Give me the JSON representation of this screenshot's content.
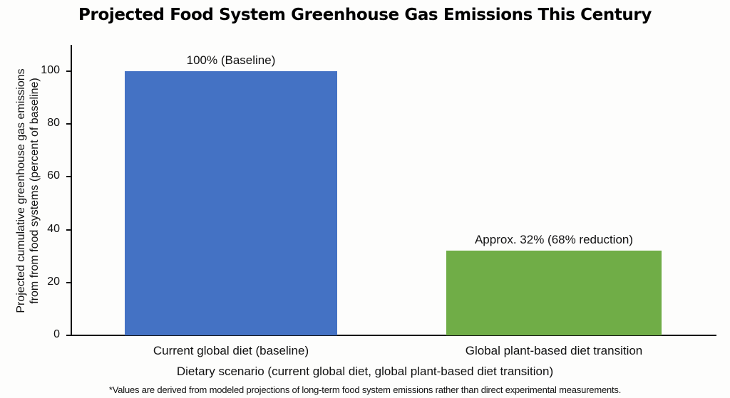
{
  "chart_data": {
    "type": "bar",
    "title": "Projected Food System Greenhouse Gas Emissions This Century",
    "xlabel": "Dietary scenario (current global diet, global plant-based diet transition)",
    "ylabel": "Projected cumulative greenhouse gas emissions from from food systems (percent of baseline)",
    "categories": [
      "Current global diet (baseline)",
      "Global plant-based diet transition"
    ],
    "values": [
      100,
      32
    ],
    "data_labels": [
      "100% (Baseline)",
      "Approx. 32% (68% reduction)"
    ],
    "colors": [
      "#4472c4",
      "#70ad47"
    ],
    "ylim": [
      0,
      100
    ],
    "yticks": [
      "0",
      "20",
      "40",
      "60",
      "80",
      "100"
    ],
    "grid": false,
    "legend": null,
    "footnote": "*Values are derived from modeled projections of long-term food system emissions rather than direct experimental measurements."
  },
  "ylabel_lines": [
    "Projected cumulative greenhouse gas emissions",
    "from from food systems (percent of baseline)"
  ]
}
